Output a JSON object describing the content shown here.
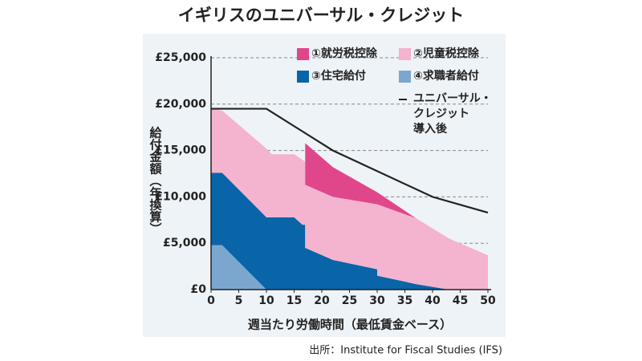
{
  "chart_data": {
    "type": "area",
    "stacked": true,
    "title": "イギリスのユニバーサル・クレジット",
    "xlabel": "週当たり労働時間（最低賃金ベース）",
    "ylabel": "給付金額（年換算）",
    "source": "出所：Institute for Fiscal Studies (IFS)",
    "x": [
      0,
      2,
      10,
      11,
      15,
      16.5,
      17,
      17,
      22,
      30,
      30,
      37,
      43,
      50
    ],
    "xlim": [
      0,
      50
    ],
    "xticks": [
      0,
      5,
      10,
      15,
      20,
      25,
      30,
      35,
      40,
      45,
      50
    ],
    "ylim": [
      0,
      25000
    ],
    "yticks": [
      {
        "value": 0,
        "label": "£0"
      },
      {
        "value": 5000,
        "label": "£5,000"
      },
      {
        "value": 10000,
        "label": "£10,000"
      },
      {
        "value": 15000,
        "label": "£15,000"
      },
      {
        "value": 20000,
        "label": "£20,000"
      },
      {
        "value": 25000,
        "label": "£25,000"
      }
    ],
    "grid": true,
    "series": [
      {
        "name": "①就労税控除",
        "color": "#e0468a",
        "values": [
          null,
          null,
          null,
          null,
          null,
          null,
          null,
          4500,
          3200,
          1300,
          1300,
          0,
          null,
          null
        ]
      },
      {
        "name": "②児童税控除",
        "color": "#f4b3cf",
        "values": [
          6900,
          6700,
          7400,
          6800,
          6800,
          7000,
          6800,
          6800,
          6800,
          7000,
          7700,
          7100,
          5500,
          3700
        ]
      },
      {
        "name": "③住宅給付",
        "color": "#0a64a8",
        "values": [
          7800,
          7800,
          7800,
          7800,
          7800,
          7000,
          7000,
          4500,
          3200,
          2200,
          1500,
          600,
          0,
          null
        ]
      },
      {
        "name": "④求職者給付",
        "color": "#7ba7cf",
        "values": [
          4800,
          4800,
          0,
          null,
          null,
          null,
          null,
          null,
          null,
          null,
          null,
          null,
          null,
          null
        ]
      },
      {
        "name": "ユニバーサル・\nクレジット\n導入後",
        "color": "#222222",
        "type": "line",
        "x": [
          0,
          10,
          22,
          40,
          50
        ],
        "values": [
          19500,
          19500,
          15000,
          10000,
          8300
        ]
      }
    ]
  }
}
